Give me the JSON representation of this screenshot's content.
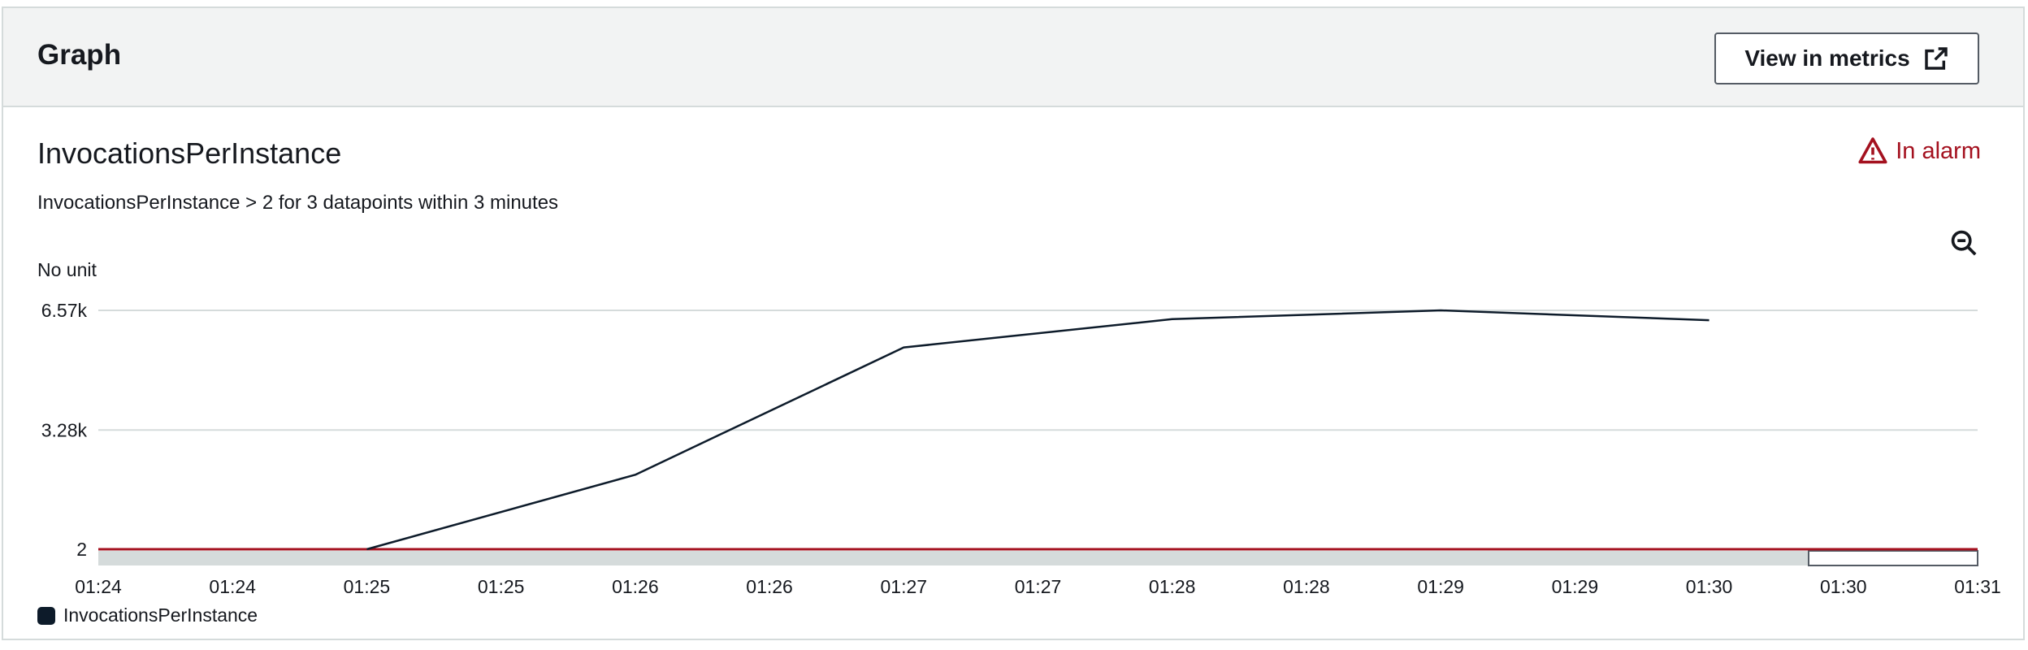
{
  "header": {
    "title": "Graph",
    "view_metrics_label": "View in metrics"
  },
  "metric": {
    "title": "InvocationsPerInstance",
    "condition": "InvocationsPerInstance > 2 for 3 datapoints within 3 minutes",
    "status": "In alarm"
  },
  "icons": {
    "external_link": "external-link-icon",
    "warning": "warning-triangle-icon",
    "zoom_out": "zoom-out-icon"
  },
  "colors": {
    "alarm": "#a4111f",
    "series": "#0d1b2a",
    "threshold": "#a4111f"
  },
  "chart_data": {
    "type": "line",
    "ylabel": "No unit",
    "y_ticks": [
      {
        "label": "6.57k",
        "value": 6570
      },
      {
        "label": "3.28k",
        "value": 3280
      },
      {
        "label": "2",
        "value": 2
      }
    ],
    "x_tick_labels": [
      "01:24",
      "01:24",
      "01:25",
      "01:25",
      "01:26",
      "01:26",
      "01:27",
      "01:27",
      "01:28",
      "01:28",
      "01:29",
      "01:29",
      "01:30",
      "01:30",
      "01:31"
    ],
    "series": [
      {
        "name": "InvocationsPerInstance",
        "points": [
          {
            "x": 2,
            "y": 2
          },
          {
            "x": 4,
            "y": 2050
          },
          {
            "x": 6,
            "y": 5550
          },
          {
            "x": 8,
            "y": 6330
          },
          {
            "x": 10,
            "y": 6570
          },
          {
            "x": 12,
            "y": 6300
          }
        ]
      }
    ],
    "threshold": 2,
    "legend_position": "bottom-left"
  }
}
